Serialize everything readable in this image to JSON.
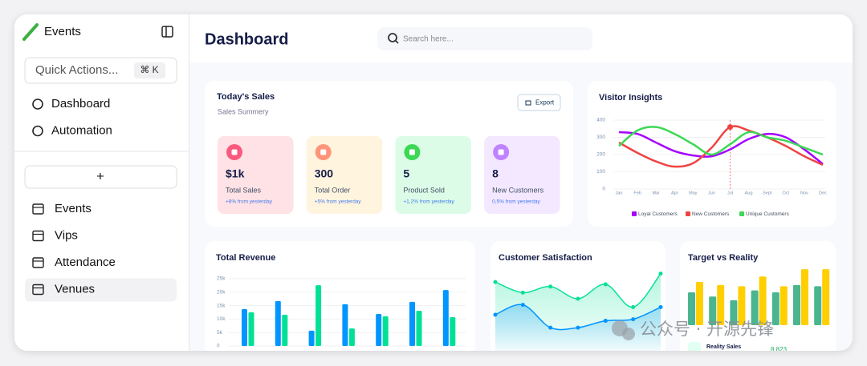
{
  "sidebar": {
    "brand": "Events",
    "quick_actions": "Quick Actions...",
    "shortcut": "⌘ K",
    "nav": [
      "Dashboard",
      "Automation"
    ],
    "add": "+",
    "tables": [
      "Events",
      "Vips",
      "Attendance",
      "Venues"
    ],
    "active": 3
  },
  "header": {
    "title": "Dashboard",
    "search_placeholder": "Search here..."
  },
  "sales": {
    "title": "Today's Sales",
    "subtitle": "Sales Summery",
    "export": "Export",
    "cards": [
      {
        "value": "$1k",
        "label": "Total Sales",
        "change": "+8% from yesterday",
        "color": "#ffe2e5",
        "icon": "#fa5a7d"
      },
      {
        "value": "300",
        "label": "Total Order",
        "change": "+5% from yesterday",
        "color": "#fff4de",
        "icon": "#ff947a"
      },
      {
        "value": "5",
        "label": "Product Sold",
        "change": "+1,2% from yesterday",
        "color": "#dcfce7",
        "icon": "#3cd856"
      },
      {
        "value": "8",
        "label": "New Customers",
        "change": "0,5% from yesterday",
        "color": "#f3e8ff",
        "icon": "#bf83ff"
      }
    ]
  },
  "chart_data": [
    {
      "type": "line",
      "title": "Visitor Insights",
      "categories": [
        "Jan",
        "Feb",
        "Mar",
        "Apr",
        "May",
        "Jun",
        "Jul",
        "Aug",
        "Sept",
        "Oct",
        "Nov",
        "Dec"
      ],
      "ylim": [
        0,
        400
      ],
      "yticks": [
        0,
        100,
        200,
        300,
        400
      ],
      "highlight_index": 6,
      "series": [
        {
          "name": "Loyal Customers",
          "color": "#a700ff",
          "values": [
            330,
            320,
            270,
            220,
            195,
            190,
            230,
            290,
            320,
            300,
            230,
            145
          ]
        },
        {
          "name": "New Customers",
          "color": "#ef4444",
          "values": [
            270,
            210,
            160,
            130,
            150,
            240,
            360,
            340,
            300,
            250,
            190,
            140
          ]
        },
        {
          "name": "Unique Customers",
          "color": "#3cd856",
          "values": [
            250,
            340,
            360,
            320,
            260,
            200,
            260,
            330,
            300,
            280,
            240,
            200
          ]
        }
      ]
    },
    {
      "type": "bar",
      "title": "Total Revenue",
      "categories": [
        null,
        null,
        null,
        null,
        null,
        null,
        null
      ],
      "ylim": [
        0,
        25000
      ],
      "yticks": [
        0,
        {
          "value": 5000,
          "label": "5k"
        },
        {
          "value": 10000,
          "label": "10k"
        },
        {
          "value": 15000,
          "label": "15k"
        },
        {
          "value": 20000,
          "label": "20k"
        },
        {
          "value": 25000,
          "label": "25k"
        }
      ],
      "series": [
        {
          "color": "#0095ff",
          "values": [
            13700,
            16700,
            5700,
            15500,
            11900,
            16400,
            20800
          ]
        },
        {
          "color": "#00e096",
          "values": [
            12500,
            11600,
            22600,
            6500,
            11000,
            13100,
            10700
          ]
        }
      ]
    },
    {
      "type": "area",
      "title": "Customer Satisfaction",
      "ylim": [
        0,
        100
      ],
      "series": [
        {
          "color": "#07e098",
          "values": [
            82,
            68,
            76,
            60,
            79,
            49,
            93
          ]
        },
        {
          "color": "#0095ff",
          "values": [
            39,
            52,
            22,
            22,
            31,
            33,
            49
          ]
        }
      ]
    },
    {
      "type": "bar",
      "title": "Target vs Reality",
      "ylim": [
        0,
        100
      ],
      "categories": [
        null,
        null,
        null,
        null,
        null,
        null,
        null
      ],
      "series": [
        {
          "color": "#4ab58e",
          "values": [
            54,
            47,
            41,
            57,
            54,
            66,
            64
          ]
        },
        {
          "color": "#ffcf00",
          "values": [
            71,
            66,
            64,
            80,
            64,
            92,
            92
          ]
        }
      ],
      "footer_label": "Reality Sales",
      "footer_value": "8.823"
    }
  ],
  "watermark": "公众号 · 开源先锋"
}
